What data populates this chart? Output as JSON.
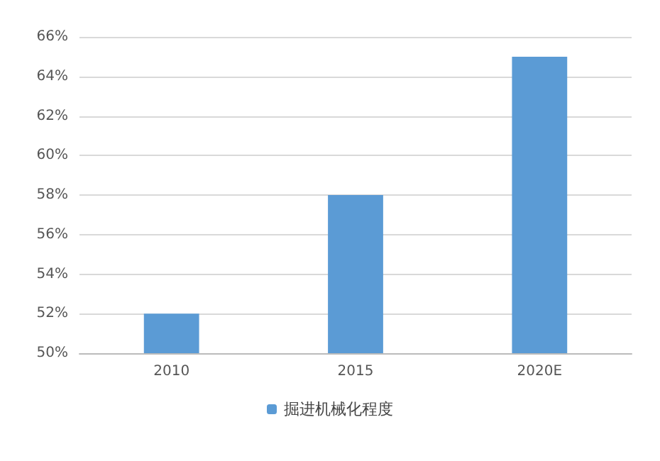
{
  "chart_data": {
    "type": "bar",
    "categories": [
      "2010",
      "2015",
      "2020E"
    ],
    "series": [
      {
        "name": "掘进机械化程度",
        "color": "#5b9bd5",
        "values": [
          52,
          58,
          65
        ]
      }
    ],
    "ylim": [
      50,
      66
    ],
    "yticks": [
      {
        "value": 50,
        "label": "50%"
      },
      {
        "value": 52,
        "label": "52%"
      },
      {
        "value": 54,
        "label": "54%"
      },
      {
        "value": 56,
        "label": "56%"
      },
      {
        "value": 58,
        "label": "58%"
      },
      {
        "value": 60,
        "label": "60%"
      },
      {
        "value": 62,
        "label": "62%"
      },
      {
        "value": 64,
        "label": "64%"
      },
      {
        "value": 66,
        "label": "66%"
      }
    ],
    "grid": "y",
    "legend": "bottom"
  }
}
